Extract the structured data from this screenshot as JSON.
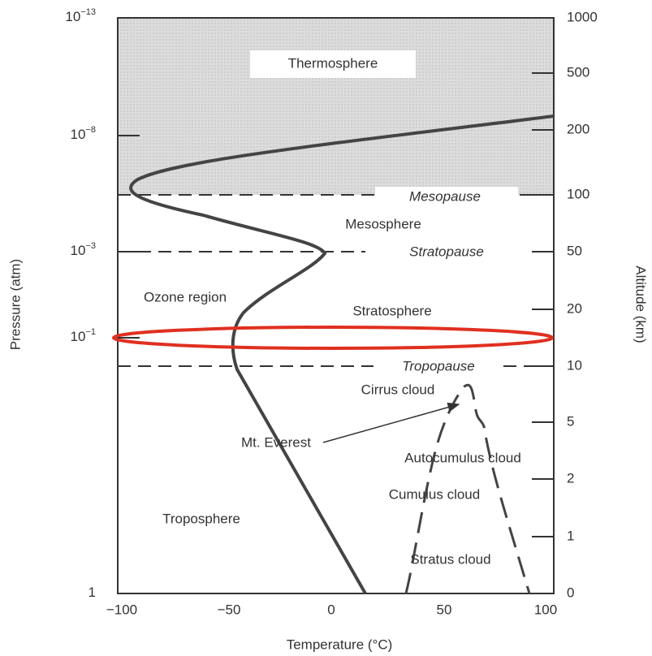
{
  "axes": {
    "left_title": "Pressure (atm)",
    "right_title": "Altitude (km)",
    "bottom_title": "Temperature (°C)",
    "left_ticks": [
      {
        "base": "10",
        "exp": "−13"
      },
      {
        "base": "10",
        "exp": "−8"
      },
      {
        "base": "10",
        "exp": "−3"
      },
      {
        "base": "10",
        "exp": "−1"
      },
      {
        "base": "1",
        "exp": ""
      }
    ],
    "right_ticks": [
      "1000",
      "500",
      "200",
      "100",
      "50",
      "20",
      "10",
      "5",
      "2",
      "1",
      "0"
    ],
    "bottom_ticks": [
      "−100",
      "−50",
      "0",
      "50",
      "100"
    ]
  },
  "labels": {
    "thermosphere": "Thermosphere",
    "mesopause": "Mesopause",
    "mesosphere": "Mesosphere",
    "stratopause": "Stratopause",
    "ozone_region": "Ozone region",
    "stratosphere": "Stratosphere",
    "tropopause": "Tropopause",
    "cirrus": "Cirrus cloud",
    "everest": "Mt. Everest",
    "autocumulus": "Autocumulus cloud",
    "cumulus": "Cumulus cloud",
    "troposphere": "Troposphere",
    "stratus": "Stratus cloud"
  }
}
